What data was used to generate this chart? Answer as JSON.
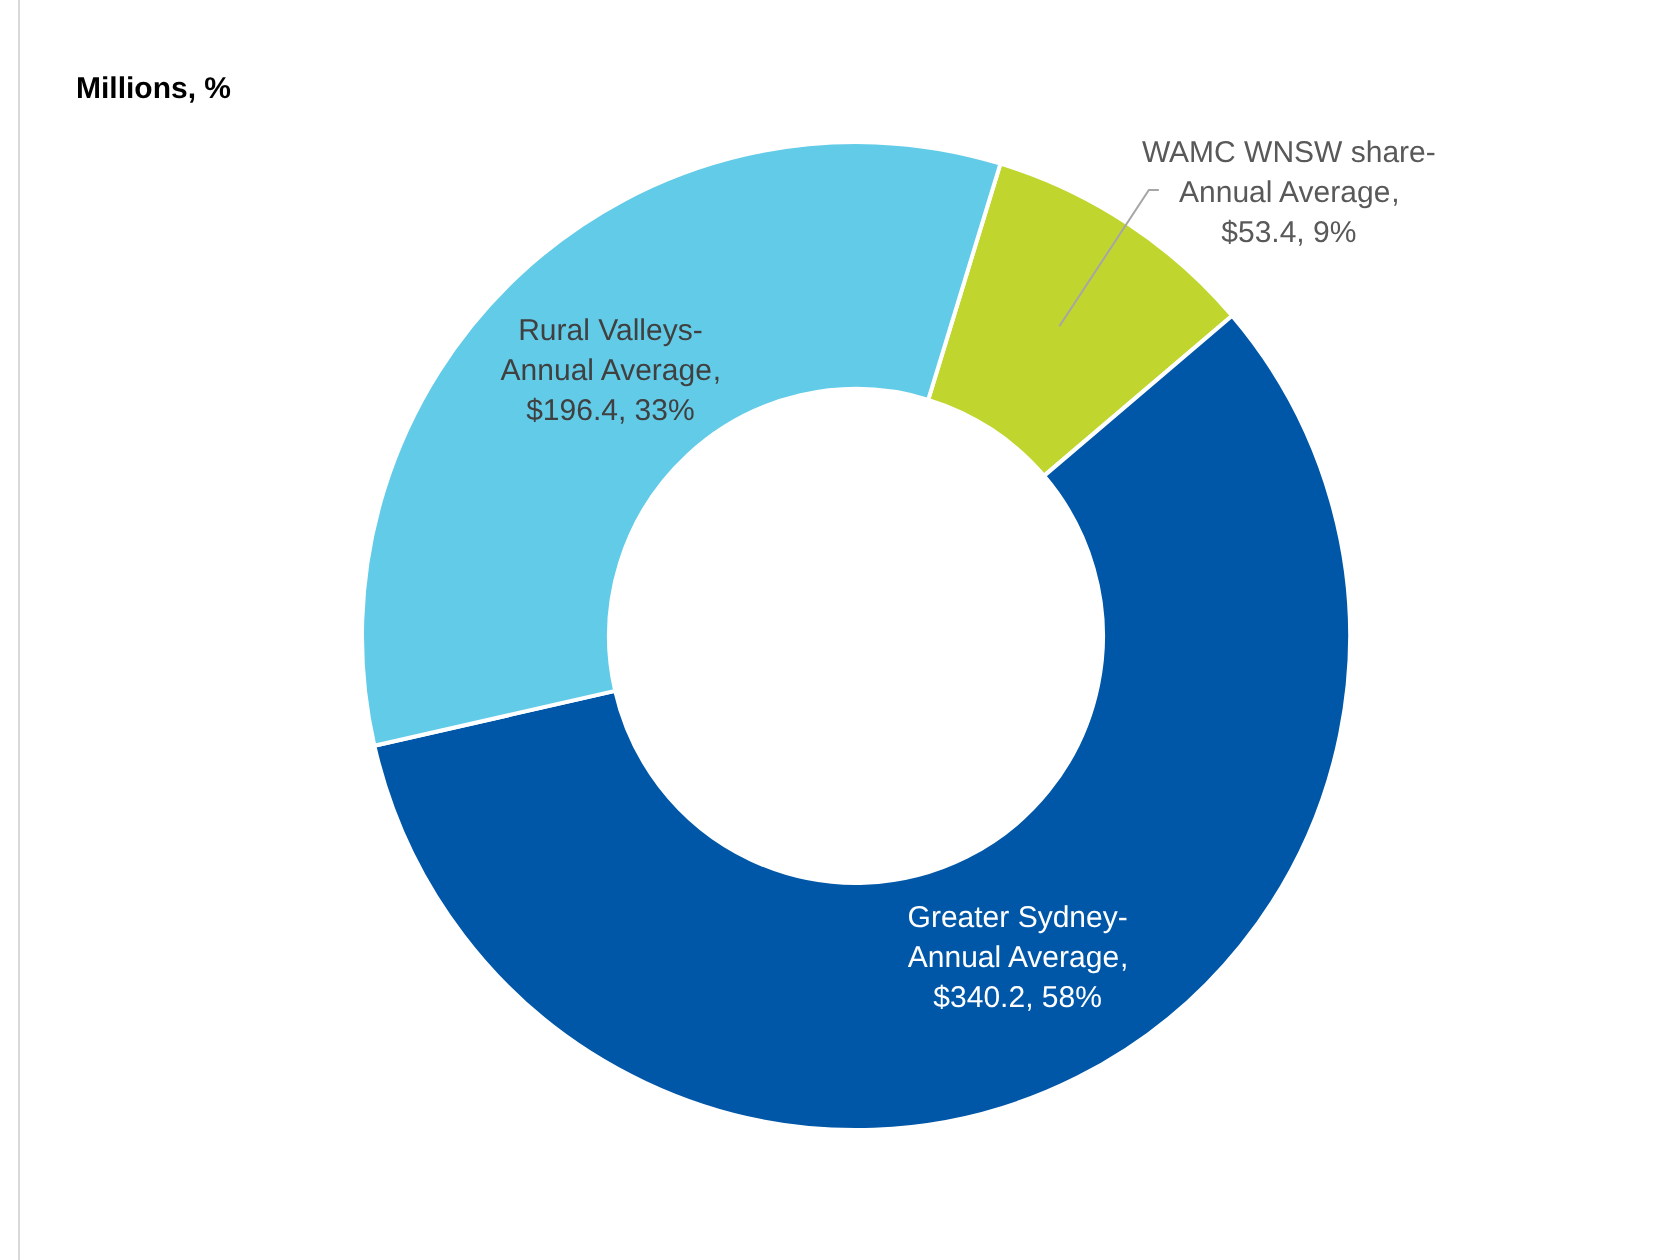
{
  "chart_data": {
    "type": "donut",
    "title": "Millions, %",
    "categories": [
      "WAMC WNSW share-Annual Average",
      "Greater Sydney-Annual Average",
      "Rural Valleys-Annual Average"
    ],
    "values": [
      53.4,
      340.2,
      196.4
    ],
    "colors": [
      "#c0d62e",
      "#0057a8",
      "#62cbe8"
    ],
    "value_labels": [
      ", $53.4, 9%",
      ", $340.2, 58%",
      ", $196.4, 33%"
    ],
    "legend": false
  }
}
